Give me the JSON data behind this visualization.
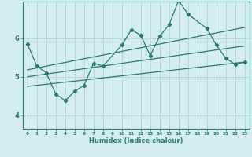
{
  "xlabel": "Humidex (Indice chaleur)",
  "ylabel": "",
  "bg_color": "#d4eeee",
  "line_color": "#2a7a6a",
  "grid_color": "#b8d8d8",
  "xlim": [
    -0.5,
    23.5
  ],
  "ylim": [
    3.65,
    6.95
  ],
  "yticks": [
    4,
    5,
    6
  ],
  "xticks": [
    0,
    1,
    2,
    3,
    4,
    5,
    6,
    7,
    8,
    9,
    10,
    11,
    12,
    13,
    14,
    15,
    16,
    17,
    18,
    19,
    20,
    21,
    22,
    23
  ],
  "main_line_x": [
    0,
    1,
    2,
    3,
    4,
    5,
    6,
    7,
    8,
    10,
    11,
    12,
    13,
    14,
    15,
    16,
    17,
    19,
    20,
    21,
    22,
    23
  ],
  "main_line_y": [
    5.85,
    5.28,
    5.1,
    4.55,
    4.38,
    4.62,
    4.78,
    5.35,
    5.28,
    5.82,
    6.22,
    6.08,
    5.55,
    6.05,
    6.35,
    6.98,
    6.62,
    6.25,
    5.82,
    5.48,
    5.32,
    5.38
  ],
  "upper_line_x": [
    0,
    23
  ],
  "upper_line_y": [
    5.18,
    6.28
  ],
  "mid_line_x": [
    0,
    23
  ],
  "mid_line_y": [
    5.0,
    5.8
  ],
  "lower_line_x": [
    0,
    23
  ],
  "lower_line_y": [
    4.75,
    5.38
  ]
}
